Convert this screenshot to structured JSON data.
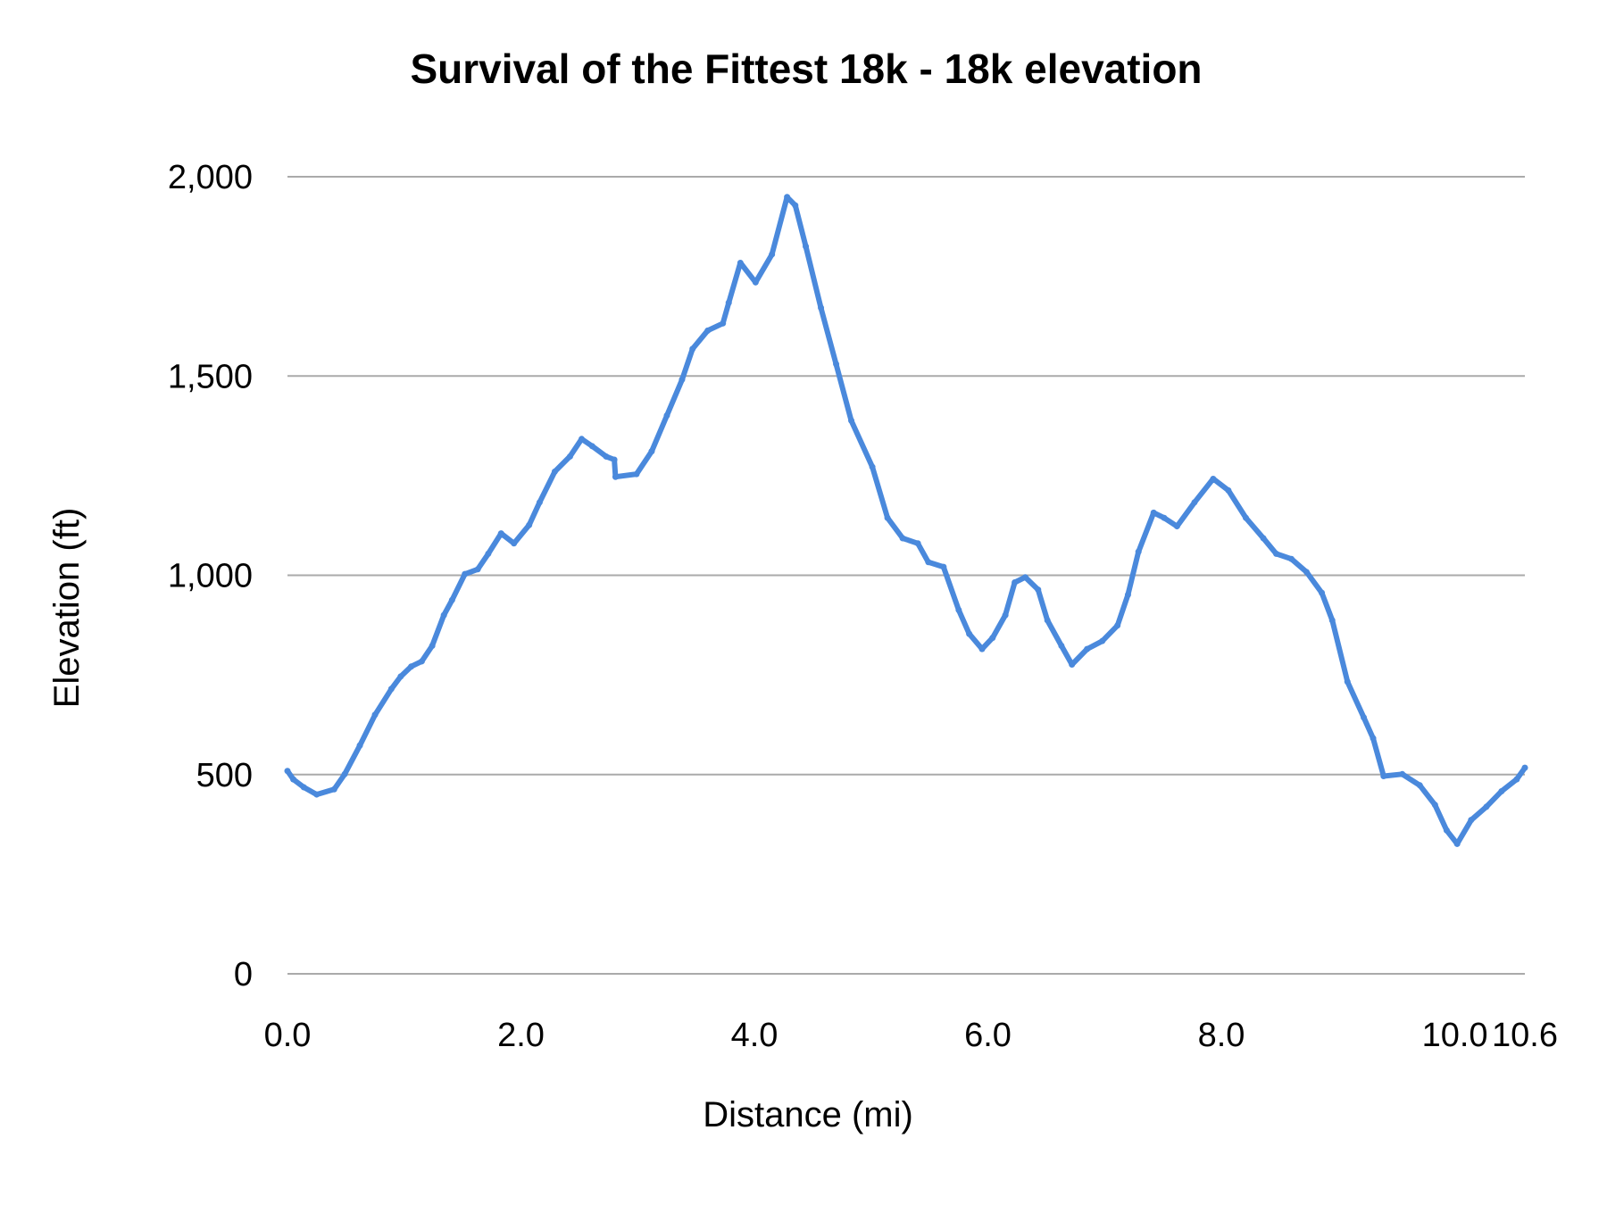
{
  "chart_data": {
    "type": "line",
    "title": "Survival of the Fittest 18k - 18k elevation",
    "xlabel": "Distance (mi)",
    "ylabel": "Elevation (ft)",
    "xlim": [
      0,
      10.6
    ],
    "ylim": [
      0,
      2000
    ],
    "x_ticks": [
      "0.0",
      "2.0",
      "4.0",
      "6.0",
      "8.0",
      "10.0",
      "10.6"
    ],
    "x_tick_values": [
      0,
      2,
      4,
      6,
      8,
      10,
      10.6
    ],
    "y_ticks": [
      "0",
      "500",
      "1,000",
      "1,500",
      "2,000"
    ],
    "y_tick_values": [
      0,
      500,
      1000,
      1500,
      2000
    ],
    "grid": "horizontal",
    "legend": "none",
    "color": "#4a89dc",
    "x": [
      0,
      0.05,
      0.14,
      0.25,
      0.4,
      0.49,
      0.62,
      0.75,
      0.89,
      0.97,
      1.06,
      1.15,
      1.24,
      1.34,
      1.41,
      1.52,
      1.63,
      1.72,
      1.83,
      1.94,
      2.07,
      2.16,
      2.29,
      2.42,
      2.52,
      2.61,
      2.73,
      2.8,
      2.81,
      2.99,
      3.12,
      3.25,
      3.38,
      3.47,
      3.6,
      3.73,
      3.78,
      3.88,
      4.01,
      4.15,
      4.28,
      4.35,
      4.44,
      4.57,
      4.7,
      4.83,
      5.01,
      5.14,
      5.27,
      5.4,
      5.49,
      5.62,
      5.75,
      5.84,
      5.95,
      6.04,
      6.15,
      6.23,
      6.32,
      6.43,
      6.51,
      6.63,
      6.72,
      6.85,
      6.98,
      7.11,
      7.2,
      7.29,
      7.42,
      7.51,
      7.62,
      7.77,
      7.93,
      8.06,
      8.21,
      8.36,
      8.47,
      8.6,
      8.73,
      8.86,
      8.95,
      9.08,
      9.22,
      9.3,
      9.39,
      9.55,
      9.7,
      9.83,
      9.93,
      10.02,
      10.14,
      10.27,
      10.4,
      10.53,
      10.6
    ],
    "y": [
      509,
      488,
      468,
      450,
      463,
      501,
      573,
      650,
      715,
      746,
      771,
      784,
      823,
      900,
      938,
      1003,
      1015,
      1054,
      1105,
      1080,
      1126,
      1183,
      1260,
      1298,
      1342,
      1324,
      1298,
      1290,
      1247,
      1254,
      1311,
      1401,
      1491,
      1568,
      1614,
      1632,
      1684,
      1784,
      1735,
      1805,
      1949,
      1928,
      1825,
      1671,
      1530,
      1388,
      1272,
      1144,
      1093,
      1080,
      1033,
      1021,
      913,
      853,
      815,
      843,
      900,
      982,
      995,
      964,
      887,
      823,
      776,
      815,
      835,
      874,
      951,
      1059,
      1157,
      1144,
      1123,
      1183,
      1242,
      1213,
      1144,
      1093,
      1054,
      1041,
      1008,
      956,
      887,
      733,
      643,
      591,
      496,
      501,
      473,
      424,
      360,
      326,
      386,
      419,
      458,
      488,
      517
    ]
  }
}
